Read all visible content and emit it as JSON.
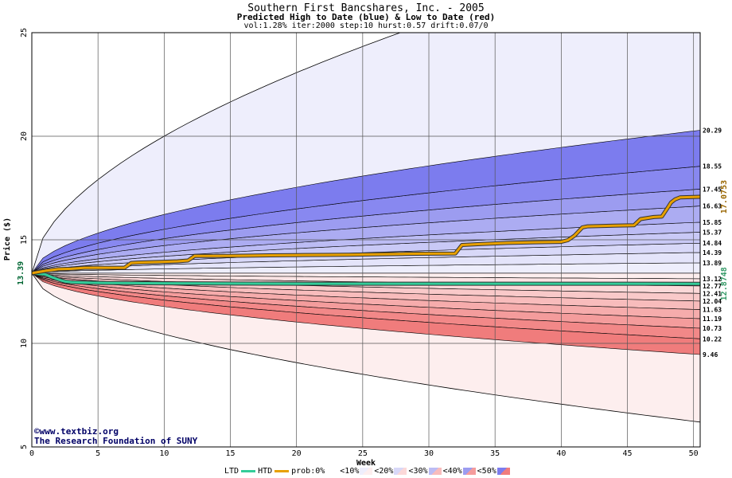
{
  "title": "Southern First Bancshares, Inc. - 2005",
  "subtitle": "Predicted High to Date (blue) &  Low to Date (red)",
  "params": "vol:1.28% iter:2000 step:10 hurst:0.57 drift:0.07/0",
  "watermark": {
    "line1": "©www.textbiz.org",
    "line2": "The Research Foundation of SUNY"
  },
  "legend": {
    "ltd_label": "LTD",
    "htd_label": "HTD",
    "prob_label": "prob:0%",
    "buckets": [
      "<10%",
      "<20%",
      "<30%",
      "<40%",
      "<50%"
    ]
  },
  "colors": {
    "htd_line": "#e8a000",
    "ltd_line": "#33cc99",
    "blue_outer": "#eeeefc",
    "red_outer": "#fdeeee",
    "start_label": "#006633",
    "end_high_label": "#996600",
    "end_low_label": "#339966"
  },
  "chart_data": {
    "type": "area",
    "xlabel": "Week",
    "ylabel": "Price ($)",
    "xlim": [
      0,
      50.5
    ],
    "ylim": [
      5,
      25
    ],
    "x_ticks": [
      0,
      5,
      10,
      15,
      20,
      25,
      30,
      35,
      40,
      45,
      50
    ],
    "y_ticks": [
      5,
      10,
      15,
      20,
      25
    ],
    "grid": true,
    "start_price": 13.39,
    "start_label": "13.39",
    "high_bands_end": [
      13.89,
      14.39,
      14.84,
      15.37,
      15.85,
      16.63,
      17.45,
      18.55,
      20.29
    ],
    "high_band_labels": [
      "13.89",
      "14.39",
      "14.84",
      "15.37",
      "15.85",
      "16.63",
      "17.45",
      "18.55",
      "20.29"
    ],
    "low_bands_end": [
      13.12,
      12.77,
      12.41,
      12.04,
      11.63,
      11.19,
      10.73,
      10.22,
      9.46
    ],
    "low_band_labels": [
      "13.12",
      "12.77",
      "12.41",
      "12.04",
      "11.63",
      "11.19",
      "10.73",
      "10.22",
      "9.46"
    ],
    "max_envelope_end": 25,
    "min_envelope_end": 6.2,
    "htd_end_label": "17.0753",
    "ltd_end_label": "12.8748",
    "series": [
      {
        "name": "HTD",
        "x": [
          0,
          1,
          2,
          3,
          4,
          5,
          6,
          7,
          7.5,
          8,
          9,
          10,
          11,
          11.8,
          12.3,
          14,
          16,
          18,
          20,
          22,
          24,
          26,
          28,
          30,
          32,
          32.5,
          34,
          36,
          38,
          40,
          40.5,
          41,
          41.6,
          42,
          44,
          45.5,
          46,
          47,
          47.6,
          48,
          48.3,
          48.6,
          49,
          50.5
        ],
        "values": [
          13.39,
          13.5,
          13.58,
          13.6,
          13.65,
          13.65,
          13.65,
          13.65,
          13.88,
          13.9,
          13.92,
          13.94,
          13.96,
          14.0,
          14.22,
          14.22,
          14.23,
          14.25,
          14.26,
          14.27,
          14.28,
          14.3,
          14.32,
          14.33,
          14.34,
          14.75,
          14.8,
          14.85,
          14.88,
          14.9,
          14.98,
          15.2,
          15.6,
          15.65,
          15.68,
          15.7,
          16.0,
          16.1,
          16.12,
          16.5,
          16.8,
          16.95,
          17.05,
          17.0753
        ]
      },
      {
        "name": "LTD",
        "x": [
          0,
          1,
          1.5,
          2,
          2.5,
          3,
          4,
          6,
          10,
          15,
          20,
          25,
          30,
          35,
          40,
          45,
          50.5
        ],
        "values": [
          13.39,
          13.33,
          13.2,
          13.08,
          12.99,
          12.95,
          12.93,
          12.91,
          12.9,
          12.89,
          12.88,
          12.88,
          12.88,
          12.88,
          12.88,
          12.88,
          12.8748
        ]
      }
    ]
  }
}
